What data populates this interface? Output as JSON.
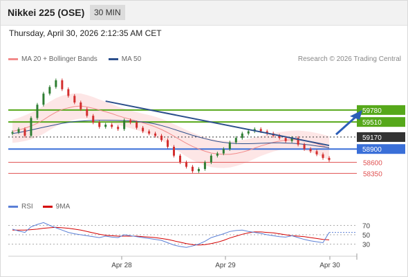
{
  "header": {
    "title": "Nikkei 225 (OSE)",
    "timeframe": "30 MIN"
  },
  "datetime": "Thursday, April 30, 2026 2:12:35 AM CET",
  "legend": {
    "ma20": {
      "label": "MA 20 + Bollinger Bands",
      "color": "#f28a8a"
    },
    "ma50": {
      "label": "MA 50",
      "color": "#2c4f8c"
    }
  },
  "research": "Research © 2026 Trading Central",
  "rsi_legend": {
    "rsi": {
      "label": "RSI",
      "color": "#5a7fd6"
    },
    "ma9": {
      "label": "9MA",
      "color": "#d40000"
    }
  },
  "colors": {
    "up": "#2e7d32",
    "down": "#d32f2f",
    "resistance": "#56a81a",
    "pivot": "#333333",
    "support": "#3a6fd8",
    "support_extra": "#e05050"
  },
  "chart_data": [
    {
      "type": "line",
      "title": "Nikkei 225 (OSE) 30 MIN",
      "x_ticks": [
        "Apr 28",
        "Apr 29",
        "Apr 30"
      ],
      "price_levels": [
        {
          "value": 59780,
          "label": "59780",
          "kind": "resistance"
        },
        {
          "value": 59510,
          "label": "59510",
          "kind": "resistance"
        },
        {
          "value": 59170,
          "label": "59170",
          "kind": "pivot"
        },
        {
          "value": 58900,
          "label": "58900",
          "kind": "support"
        },
        {
          "value": 58600,
          "label": "58600",
          "kind": "support_extra"
        },
        {
          "value": 58350,
          "label": "58350",
          "kind": "support_extra"
        }
      ],
      "series": [
        {
          "name": "Close",
          "values": [
            59280,
            59350,
            59200,
            59600,
            59900,
            60150,
            60300,
            60450,
            60250,
            60100,
            59950,
            59800,
            59650,
            59500,
            59400,
            59450,
            59400,
            59350,
            59550,
            59500,
            59380,
            59300,
            59250,
            59200,
            59100,
            58950,
            58750,
            58600,
            58500,
            58400,
            58450,
            58600,
            58750,
            58800,
            58900,
            59050,
            59150,
            59250,
            59300,
            59350,
            59300,
            59250,
            59200,
            59150,
            59080,
            59150,
            59000,
            58900,
            58850,
            58780,
            58700,
            58650
          ]
        },
        {
          "name": "MA 20",
          "values": [
            59300,
            59330,
            59370,
            59420,
            59480,
            59560,
            59650,
            59730,
            59790,
            59830,
            59860,
            59870,
            59850,
            59820,
            59780,
            59740,
            59700,
            59650,
            59610,
            59570,
            59530,
            59490,
            59450,
            59400,
            59340,
            59270,
            59190,
            59110,
            59030,
            58960,
            58900,
            58850,
            58810,
            58790,
            58780,
            58780,
            58800,
            58830,
            58870,
            58920,
            58970,
            59010,
            59050,
            59080,
            59100,
            59110,
            59110,
            59090,
            59060,
            59020,
            58970,
            58920
          ]
        },
        {
          "name": "MA 50",
          "values": [
            59250,
            59270,
            59300,
            59330,
            59360,
            59390,
            59420,
            59450,
            59480,
            59500,
            59520,
            59530,
            59540,
            59545,
            59550,
            59550,
            59548,
            59545,
            59540,
            59535,
            59525,
            59510,
            59490,
            59465,
            59430,
            59390,
            59345,
            59300,
            59255,
            59210,
            59170,
            59135,
            59100,
            59070,
            59050,
            59035,
            59025,
            59020,
            59020,
            59025,
            59030,
            59035,
            59040,
            59040,
            59035,
            59030,
            59020,
            59005,
            58990,
            58970,
            58950,
            58930
          ]
        }
      ],
      "y_range": [
        58200,
        60700
      ]
    },
    {
      "type": "line",
      "title": "RSI",
      "y_ticks": [
        "70",
        "50",
        "30"
      ],
      "y_range": [
        10,
        90
      ],
      "series": [
        {
          "name": "RSI",
          "values": [
            62,
            58,
            55,
            67,
            72,
            76,
            70,
            65,
            60,
            55,
            52,
            50,
            48,
            46,
            44,
            47,
            45,
            44,
            50,
            48,
            46,
            44,
            42,
            40,
            38,
            33,
            28,
            25,
            23,
            26,
            30,
            36,
            44,
            48,
            52,
            57,
            59,
            60,
            57,
            55,
            53,
            50,
            48,
            46,
            45,
            48,
            44,
            40,
            37,
            35,
            33,
            55
          ]
        },
        {
          "name": "9MA",
          "values": [
            60,
            60,
            60,
            61,
            62,
            64,
            65,
            66,
            65,
            64,
            62,
            60,
            57,
            54,
            51,
            49,
            48,
            47,
            47,
            47,
            47,
            46,
            45,
            44,
            42,
            40,
            37,
            34,
            31,
            29,
            28,
            29,
            31,
            34,
            38,
            43,
            47,
            51,
            54,
            56,
            56,
            55,
            54,
            52,
            50,
            48,
            47,
            46,
            44,
            42,
            40,
            39
          ]
        }
      ]
    }
  ]
}
